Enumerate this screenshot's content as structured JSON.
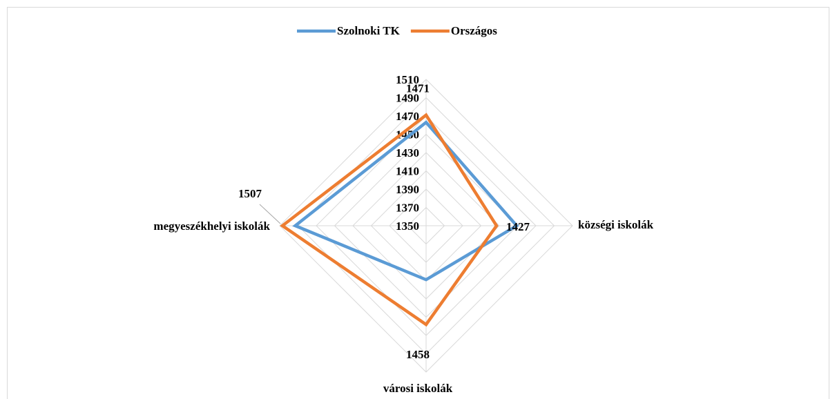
{
  "chart_data": {
    "type": "radar",
    "categories": [
      null,
      "községi iskolák",
      "városi iskolák",
      "megyeszékhelyi iskolák"
    ],
    "series": [
      {
        "name": "Szolnoki TK",
        "color": "#5b9bd5",
        "values": [
          1463,
          1449,
          1409,
          1493
        ],
        "show_labels": false
      },
      {
        "name": "Országos",
        "color": "#ed7d31",
        "values": [
          1471,
          1427,
          1458,
          1507
        ],
        "show_labels": true
      }
    ],
    "ylim": [
      1350,
      1510
    ],
    "yticks": [
      1350,
      1370,
      1390,
      1410,
      1430,
      1450,
      1470,
      1490,
      1510
    ],
    "grid": true,
    "legend": "top"
  }
}
